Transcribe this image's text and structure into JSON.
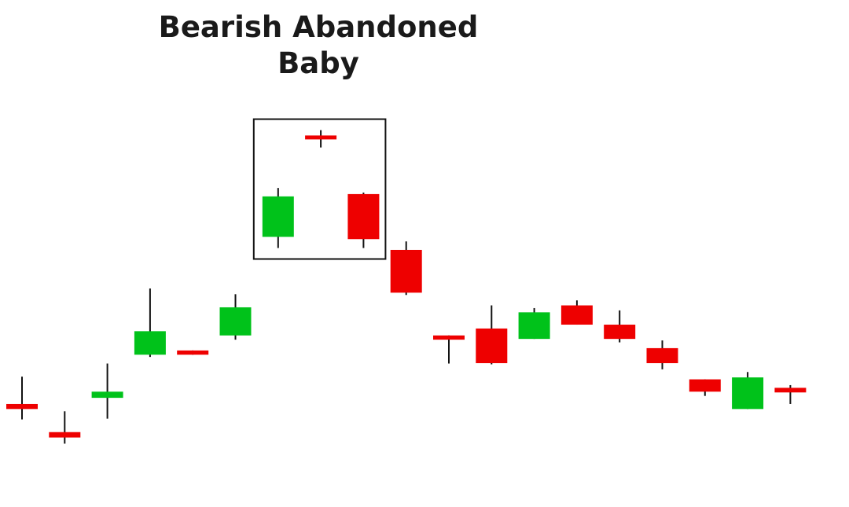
{
  "chart_data": {
    "type": "candlestick",
    "title": "Bearish Abandoned Baby",
    "title_lines": [
      "Bearish Abandoned",
      "Baby"
    ],
    "xlabel": "",
    "ylabel": "",
    "grid": false,
    "colors": {
      "bullish": "#00c21a",
      "bearish": "#ee0000",
      "wick": "#111111",
      "box": "#111111"
    },
    "ylim": [
      0,
      100
    ],
    "candles": [
      {
        "open": 19.6,
        "close": 18.3,
        "high": 26.7,
        "low": 15.6
      },
      {
        "open": 12.3,
        "close": 10.9,
        "high": 17.7,
        "low": 9.3
      },
      {
        "open": 21.2,
        "close": 22.8,
        "high": 30.1,
        "low": 15.8
      },
      {
        "open": 32.4,
        "close": 38.5,
        "high": 49.6,
        "low": 31.8
      },
      {
        "open": 33.5,
        "close": 32.4,
        "high": 33.5,
        "low": 32.4
      },
      {
        "open": 37.4,
        "close": 44.7,
        "high": 48.1,
        "low": 36.3
      },
      {
        "open": 63.0,
        "close": 73.5,
        "high": 75.7,
        "low": 60.1
      },
      {
        "open": 89.1,
        "close": 88.5,
        "high": 90.7,
        "low": 86.2
      },
      {
        "open": 74.1,
        "close": 62.4,
        "high": 74.5,
        "low": 60.1
      },
      {
        "open": 59.6,
        "close": 48.5,
        "high": 61.8,
        "low": 47.9
      },
      {
        "open": 37.4,
        "close": 36.3,
        "high": 37.4,
        "low": 30.1
      },
      {
        "open": 39.2,
        "close": 30.2,
        "high": 45.2,
        "low": 29.9
      },
      {
        "open": 36.5,
        "close": 43.4,
        "high": 44.5,
        "low": 36.5
      },
      {
        "open": 45.2,
        "close": 40.2,
        "high": 46.5,
        "low": 40.2
      },
      {
        "open": 40.2,
        "close": 36.5,
        "high": 43.9,
        "low": 35.6
      },
      {
        "open": 34.1,
        "close": 30.2,
        "high": 36.1,
        "low": 28.6
      },
      {
        "open": 26.0,
        "close": 22.8,
        "high": 26.0,
        "low": 21.7
      },
      {
        "open": 18.3,
        "close": 26.5,
        "high": 27.9,
        "low": 18.3
      },
      {
        "open": 23.8,
        "close": 22.6,
        "high": 24.5,
        "low": 19.6
      }
    ],
    "highlight": {
      "start_index": 6,
      "end_index": 8
    }
  }
}
